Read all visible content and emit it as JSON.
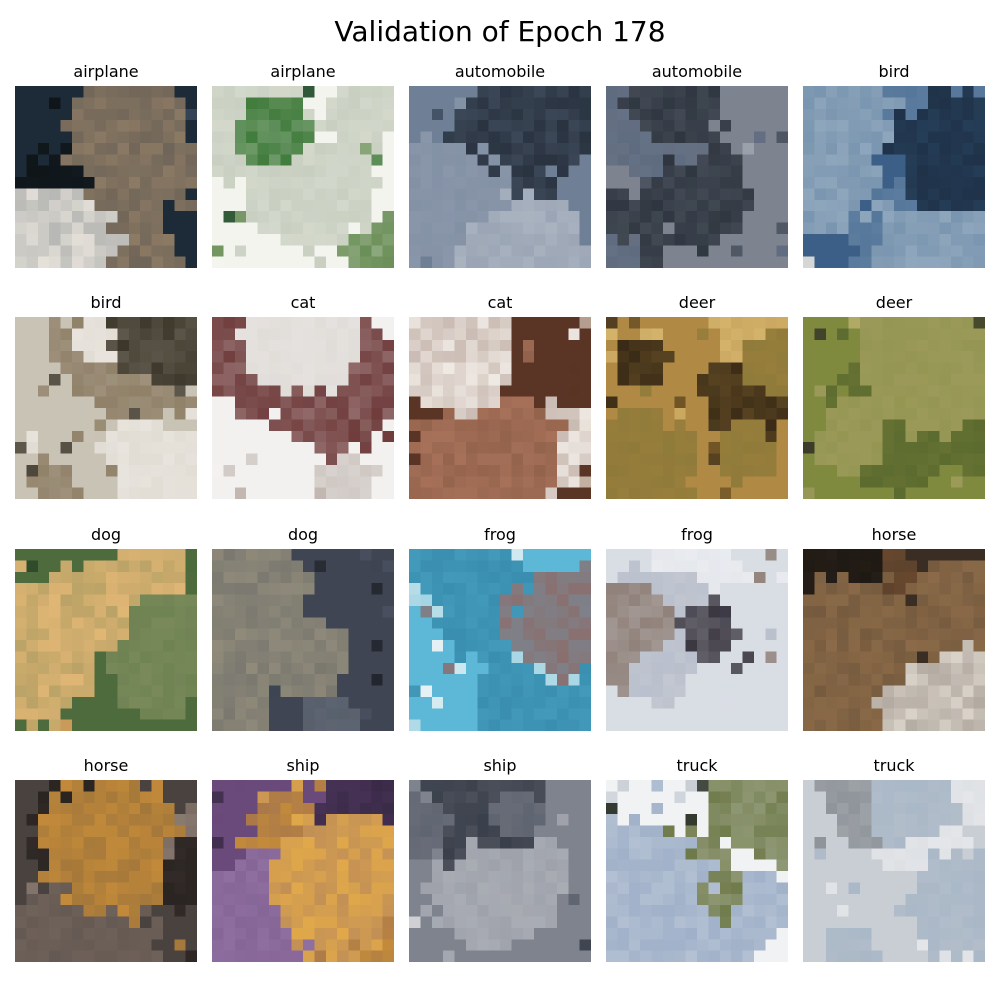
{
  "figure": {
    "title": "Validation of Epoch 178"
  },
  "samples": [
    {
      "label": "airplane",
      "palette": [
        "#1d2a38",
        "#e8e4dc",
        "#0f1518",
        "#8c7a64",
        "#3a4a5e"
      ]
    },
    {
      "label": "airplane",
      "palette": [
        "#f4f4ef",
        "#3f7a3a",
        "#1e4a26",
        "#c8cfc0",
        "#6b8f58"
      ]
    },
    {
      "label": "automobile",
      "palette": [
        "#6f7f96",
        "#3c4a5d",
        "#8a97aa",
        "#2a3441",
        "#a9b2bf"
      ]
    },
    {
      "label": "automobile",
      "palette": [
        "#7d8490",
        "#4a5260",
        "#9aa1ab",
        "#2f3640",
        "#5f6b80"
      ]
    },
    {
      "label": "bird",
      "palette": [
        "#3b5f86",
        "#e9e6e0",
        "#1f3248",
        "#8fa7bd",
        "#5d7d9f"
      ]
    },
    {
      "label": "bird",
      "palette": [
        "#c9c3b6",
        "#6f6453",
        "#3b3529",
        "#e8e4dd",
        "#8f7f67"
      ]
    },
    {
      "label": "cat",
      "palette": [
        "#f3f1ef",
        "#e0dcd8",
        "#b8aaa4",
        "#6e3a3a",
        "#cfc8c3"
      ]
    },
    {
      "label": "cat",
      "palette": [
        "#5a3424",
        "#efe9e3",
        "#2f1d16",
        "#a7725a",
        "#c8b8aa"
      ]
    },
    {
      "label": "deer",
      "palette": [
        "#b08a45",
        "#6b4f24",
        "#d3b26a",
        "#3a2b16",
        "#8f7a3a"
      ]
    },
    {
      "label": "deer",
      "palette": [
        "#7f8a3f",
        "#b6ad6a",
        "#3a3a28",
        "#5c6a2f",
        "#9c9a5a"
      ]
    },
    {
      "label": "dog",
      "palette": [
        "#4d6b3c",
        "#c99a5a",
        "#2f4a2a",
        "#e0b675",
        "#7a8a5a"
      ]
    },
    {
      "label": "dog",
      "palette": [
        "#3f4552",
        "#5f6673",
        "#22262e",
        "#8f8a7a",
        "#4a5060"
      ]
    },
    {
      "label": "frog",
      "palette": [
        "#5cb8d6",
        "#e8f2f4",
        "#8a6f6f",
        "#3a8fb0",
        "#b9dde8"
      ]
    },
    {
      "label": "frog",
      "palette": [
        "#d9dde4",
        "#b9bfcb",
        "#3a3640",
        "#8f7f78",
        "#e9ebef"
      ]
    },
    {
      "label": "horse",
      "palette": [
        "#3a2e24",
        "#8a6a48",
        "#1f1914",
        "#d9d2c9",
        "#6a4a30"
      ]
    },
    {
      "label": "horse",
      "palette": [
        "#4a423e",
        "#2a2422",
        "#6f625a",
        "#c28a3a",
        "#8a7a70"
      ]
    },
    {
      "label": "ship",
      "palette": [
        "#6a4a7a",
        "#3a2a48",
        "#c28a3a",
        "#8f6fa0",
        "#e0a84a"
      ]
    },
    {
      "label": "ship",
      "palette": [
        "#7f838e",
        "#3a3f4a",
        "#d9d9dc",
        "#5f6470",
        "#a9acb4"
      ]
    },
    {
      "label": "truck",
      "palette": [
        "#f0f2f4",
        "#6f7a4a",
        "#2a2f26",
        "#9fb0c8",
        "#c9ced6"
      ]
    },
    {
      "label": "truck",
      "palette": [
        "#c9ced4",
        "#8f949a",
        "#3a3f46",
        "#a9b7c6",
        "#e4e6e9"
      ]
    }
  ]
}
